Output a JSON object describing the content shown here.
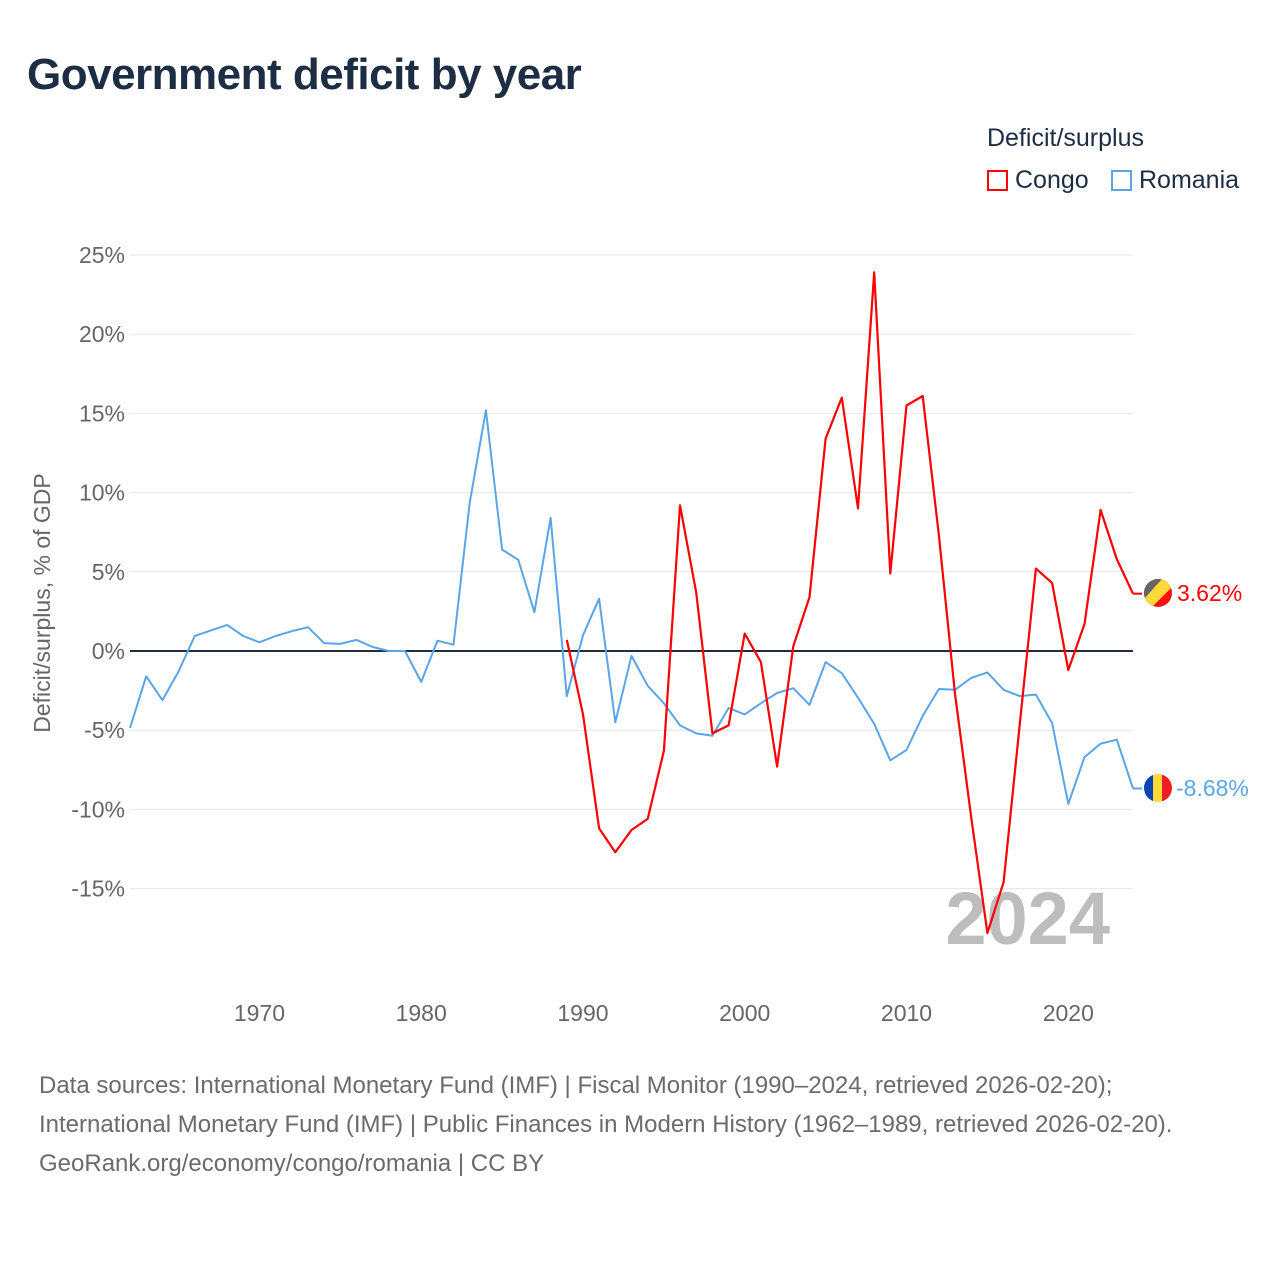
{
  "title": "Government deficit by year",
  "legend": {
    "title": "Deficit/surplus",
    "items": [
      {
        "label": "Congo",
        "color": "#ff0000"
      },
      {
        "label": "Romania",
        "color": "#5aa5e8"
      }
    ]
  },
  "year_watermark": "2024",
  "end_labels": {
    "congo": "3.62%",
    "romania": "-8.68%"
  },
  "footer": {
    "sources": "Data sources: International Monetary Fund (IMF) | Fiscal Monitor (1990–2024, retrieved 2026-02-20); International Monetary Fund (IMF) | Public Finances in Modern History (1962–1989, retrieved 2026-02-20).",
    "credit": "GeoRank.org/economy/congo/romania | CC BY"
  },
  "chart_data": {
    "type": "line",
    "title": "Government deficit by year",
    "xlabel": "",
    "ylabel": "Deficit/surplus, % of GDP",
    "xlim": [
      1962,
      2024
    ],
    "ylim": [
      -20,
      25
    ],
    "xticks": [
      1970,
      1980,
      1990,
      2000,
      2010,
      2020
    ],
    "yticks": [
      -15,
      -10,
      -5,
      0,
      5,
      10,
      15,
      20,
      25
    ],
    "ytick_labels": [
      "-15%",
      "-10%",
      "-5%",
      "0%",
      "5%",
      "10%",
      "15%",
      "20%",
      "25%"
    ],
    "grid": true,
    "legend_position": "top-right",
    "series": [
      {
        "name": "Congo",
        "color": "#ff0000",
        "start_year": 1989,
        "values": [
          0.7,
          -4.0,
          -11.2,
          -12.7,
          -11.3,
          -10.6,
          -6.3,
          9.2,
          3.7,
          -5.2,
          -4.7,
          1.1,
          -0.7,
          -7.3,
          0.3,
          3.4,
          13.4,
          16.0,
          9.0,
          23.9,
          4.9,
          15.5,
          16.1,
          7.3,
          -2.7,
          -10.5,
          -17.8,
          -14.6,
          -4.6,
          5.2,
          4.3,
          -1.2,
          1.7,
          8.9,
          5.8,
          3.62
        ]
      },
      {
        "name": "Romania",
        "color": "#5aa5e8",
        "start_year": 1962,
        "values": [
          -4.86,
          -1.6,
          -3.1,
          -1.3,
          0.95,
          1.3,
          1.65,
          0.95,
          0.55,
          0.95,
          1.25,
          1.5,
          0.5,
          0.45,
          0.7,
          0.25,
          0.0,
          0.0,
          -1.95,
          0.65,
          0.4,
          9.35,
          15.2,
          6.4,
          5.75,
          2.45,
          8.4,
          -2.85,
          1.0,
          3.3,
          -4.5,
          -0.3,
          -2.2,
          -3.3,
          -4.7,
          -5.2,
          -5.35,
          -3.6,
          -4.0,
          -3.3,
          -2.65,
          -2.35,
          -3.4,
          -0.7,
          -1.4,
          -2.95,
          -4.6,
          -6.9,
          -6.25,
          -4.1,
          -2.4,
          -2.45,
          -1.7,
          -1.35,
          -2.45,
          -2.85,
          -2.75,
          -4.55,
          -9.65,
          -6.7,
          -5.85,
          -5.6,
          -8.68
        ]
      }
    ]
  }
}
